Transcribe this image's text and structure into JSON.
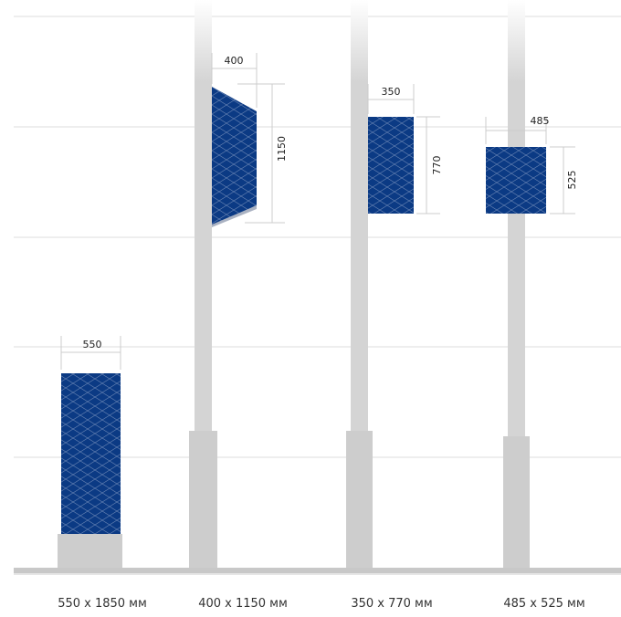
{
  "colors": {
    "panel": "#0b3a84",
    "pattern": "#8fa3c8",
    "pole": "#d4d4d4",
    "pole_base": "#cdcdcd",
    "guide_line": "#dddddd",
    "dim_line": "#cccccc",
    "ground": "#c8c8c8"
  },
  "signs": [
    {
      "id": "sign-1",
      "width_label": "550",
      "height_label": "",
      "caption": "550 x 1850 мм"
    },
    {
      "id": "sign-2",
      "width_label": "400",
      "height_label": "1150",
      "caption": "400 x 1150 мм"
    },
    {
      "id": "sign-3",
      "width_label": "350",
      "height_label": "770",
      "caption": "350 x 770 мм"
    },
    {
      "id": "sign-4",
      "width_label": "485",
      "height_label": "525",
      "caption": "485 x 525 мм"
    }
  ]
}
